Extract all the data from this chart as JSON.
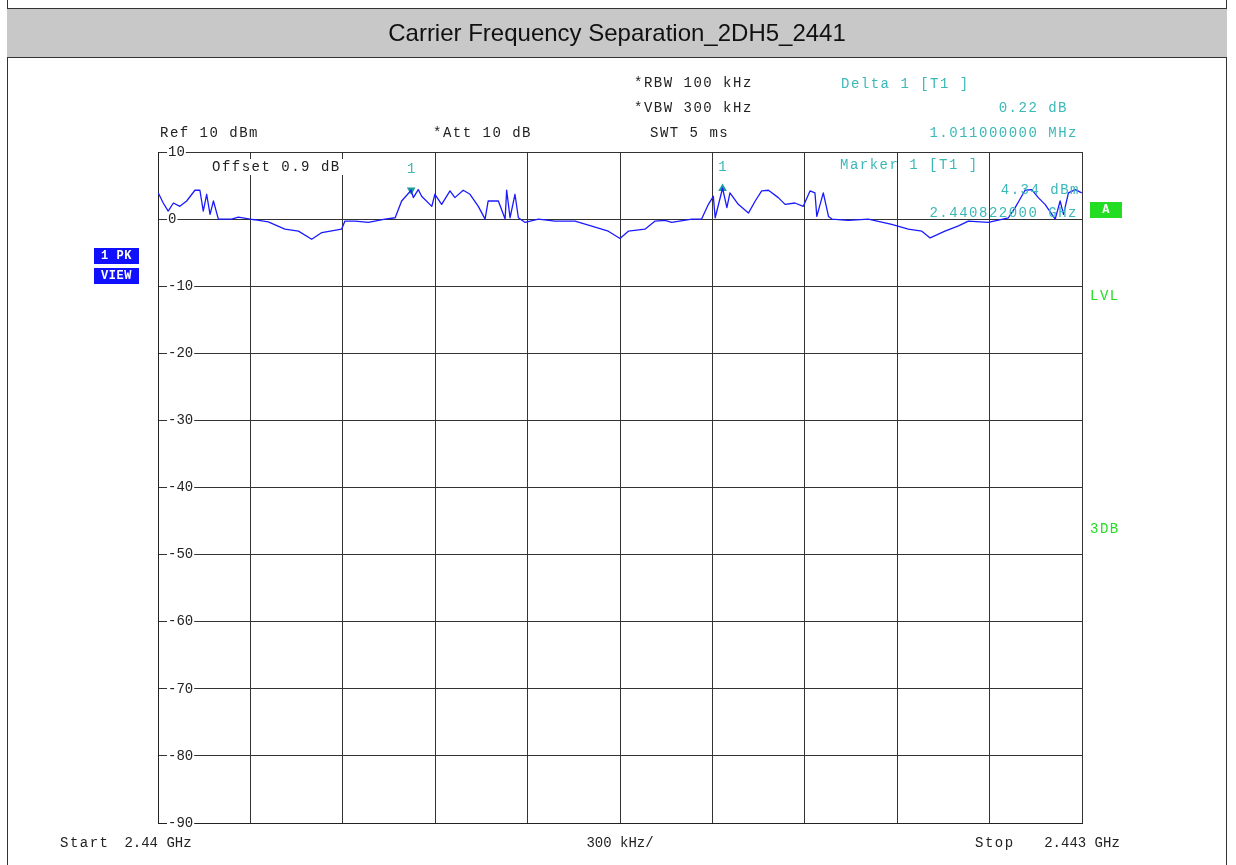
{
  "chart_data": {
    "type": "line",
    "title": "Carrier Frequency Separation_2DH5_2441",
    "x": [
      2.440001,
      2.440017,
      2.440033,
      2.44005,
      2.440071,
      2.440093,
      2.44012,
      2.440136,
      2.440147,
      2.440158,
      2.440169,
      2.44018,
      2.440196,
      2.440239,
      2.440261,
      2.440299,
      2.440358,
      2.440412,
      2.440456,
      2.440499,
      2.440532,
      2.440596,
      2.440607,
      2.44064,
      2.440683,
      2.440737,
      2.44077,
      2.440791,
      2.440822,
      2.440829,
      2.440845,
      2.440856,
      2.440889,
      2.440899,
      2.440921,
      2.440948,
      2.440964,
      2.440991,
      2.441013,
      2.44104,
      2.441062,
      2.441072,
      2.441105,
      2.441127,
      2.441132,
      2.441143,
      2.441159,
      2.44117,
      2.441192,
      2.441235,
      2.441289,
      2.441354,
      2.441419,
      2.441462,
      2.4415,
      2.441527,
      2.441581,
      2.441614,
      2.441646,
      2.441668,
      2.441733,
      2.441765,
      2.441787,
      2.441803,
      2.441809,
      2.441833,
      2.441847,
      2.441857,
      2.441884,
      2.441917,
      2.441939,
      2.44196,
      2.441982,
      2.442014,
      2.442036,
      2.442068,
      2.442095,
      2.442117,
      2.442133,
      2.442139,
      2.44216,
      2.442177,
      2.442188,
      2.442241,
      2.442306,
      2.442382,
      2.442436,
      2.44248,
      2.442507,
      2.442555,
      2.442599,
      2.442631,
      2.442696,
      2.442761,
      2.442783,
      2.442815,
      2.442837,
      2.442858,
      2.44288,
      2.442913,
      2.442929,
      2.44294,
      2.442956,
      2.442978,
      2.442999
    ],
    "series": [
      {
        "color": "#1a1aff",
        "values": [
          3.9,
          2.4,
          1.2,
          2.4,
          1.9,
          2.7,
          4.3,
          4.3,
          1.2,
          3.7,
          0.7,
          2.7,
          0,
          0,
          0.3,
          0,
          -0.4,
          -1.5,
          -1.8,
          -3.0,
          -2.0,
          -1.5,
          -0.3,
          -0.3,
          -0.5,
          0,
          0.2,
          2.7,
          4.3,
          3.2,
          4.4,
          3.4,
          1.9,
          3.7,
          2.2,
          4.2,
          3.2,
          4.3,
          3.7,
          1.9,
          0,
          2.7,
          2.7,
          0,
          4.3,
          0.2,
          3.7,
          0.2,
          -0.5,
          0,
          -0.3,
          -0.3,
          -1.2,
          -1.8,
          -2.9,
          -1.8,
          -1.5,
          -0.3,
          -0.2,
          -0.5,
          0,
          0,
          2.2,
          3.4,
          0.2,
          4.6,
          1.7,
          3.9,
          2.2,
          0.9,
          2.7,
          4.2,
          4.3,
          3.2,
          2.2,
          2.4,
          1.9,
          4.2,
          3.9,
          0.4,
          3.9,
          0.4,
          0,
          -0.2,
          0,
          -0.8,
          -1.5,
          -1.8,
          -2.8,
          -1.8,
          -1.0,
          -0.3,
          -0.5,
          0.2,
          1.7,
          4.3,
          4.4,
          3.2,
          2.2,
          0,
          2.7,
          0.7,
          3.9,
          4.4,
          3.9
        ]
      },
      {
        "type": "scatter",
        "marker": "triangle",
        "color": "#1a9a9a",
        "x": [
          2.440822,
          2.441833
        ],
        "values": [
          4.34,
          4.56
        ]
      }
    ],
    "xlabel": "300 kHz/",
    "xlim": [
      2.44,
      2.443
    ],
    "xticks": [
      {
        "value": 2.44,
        "label": "2.44 GHz"
      },
      {
        "value": 2.4403,
        "label": null
      },
      {
        "value": 2.4406,
        "label": null
      },
      {
        "value": 2.4409,
        "label": null
      },
      {
        "value": 2.4412,
        "label": null
      },
      {
        "value": 2.4415,
        "label": null
      },
      {
        "value": 2.4418,
        "label": null
      },
      {
        "value": 2.4421,
        "label": null
      },
      {
        "value": 2.4424,
        "label": null
      },
      {
        "value": 2.4427,
        "label": null
      },
      {
        "value": 2.443,
        "label": "2.443 GHz"
      }
    ],
    "ylim": [
      -90,
      10
    ],
    "yticks": [
      10,
      0,
      -10,
      -20,
      -30,
      -40,
      -50,
      -60,
      -70,
      -80,
      -90
    ],
    "grid": true,
    "legend": false,
    "marker": "none",
    "annotations": [
      "Ref 10 dBm",
      "*Att 10 dB",
      "*RBW 100 kHz",
      "*VBW 300 kHz",
      "SWT 5 ms",
      "Delta 1 [T1 ]",
      "0.22 dB",
      "1.011000000 MHz",
      "Offset 0.9 dB",
      "Marker 1 [T1 ]",
      "4.34 dBm",
      "2.440822000 GHz",
      "1 PK",
      "VIEW",
      "A",
      "LVL",
      "3DB",
      "Start",
      "Stop",
      {
        "text": "1",
        "x": 2.440822,
        "y": 4.34
      },
      {
        "text": "1",
        "x": 2.441833,
        "y": 4.56
      }
    ]
  }
}
